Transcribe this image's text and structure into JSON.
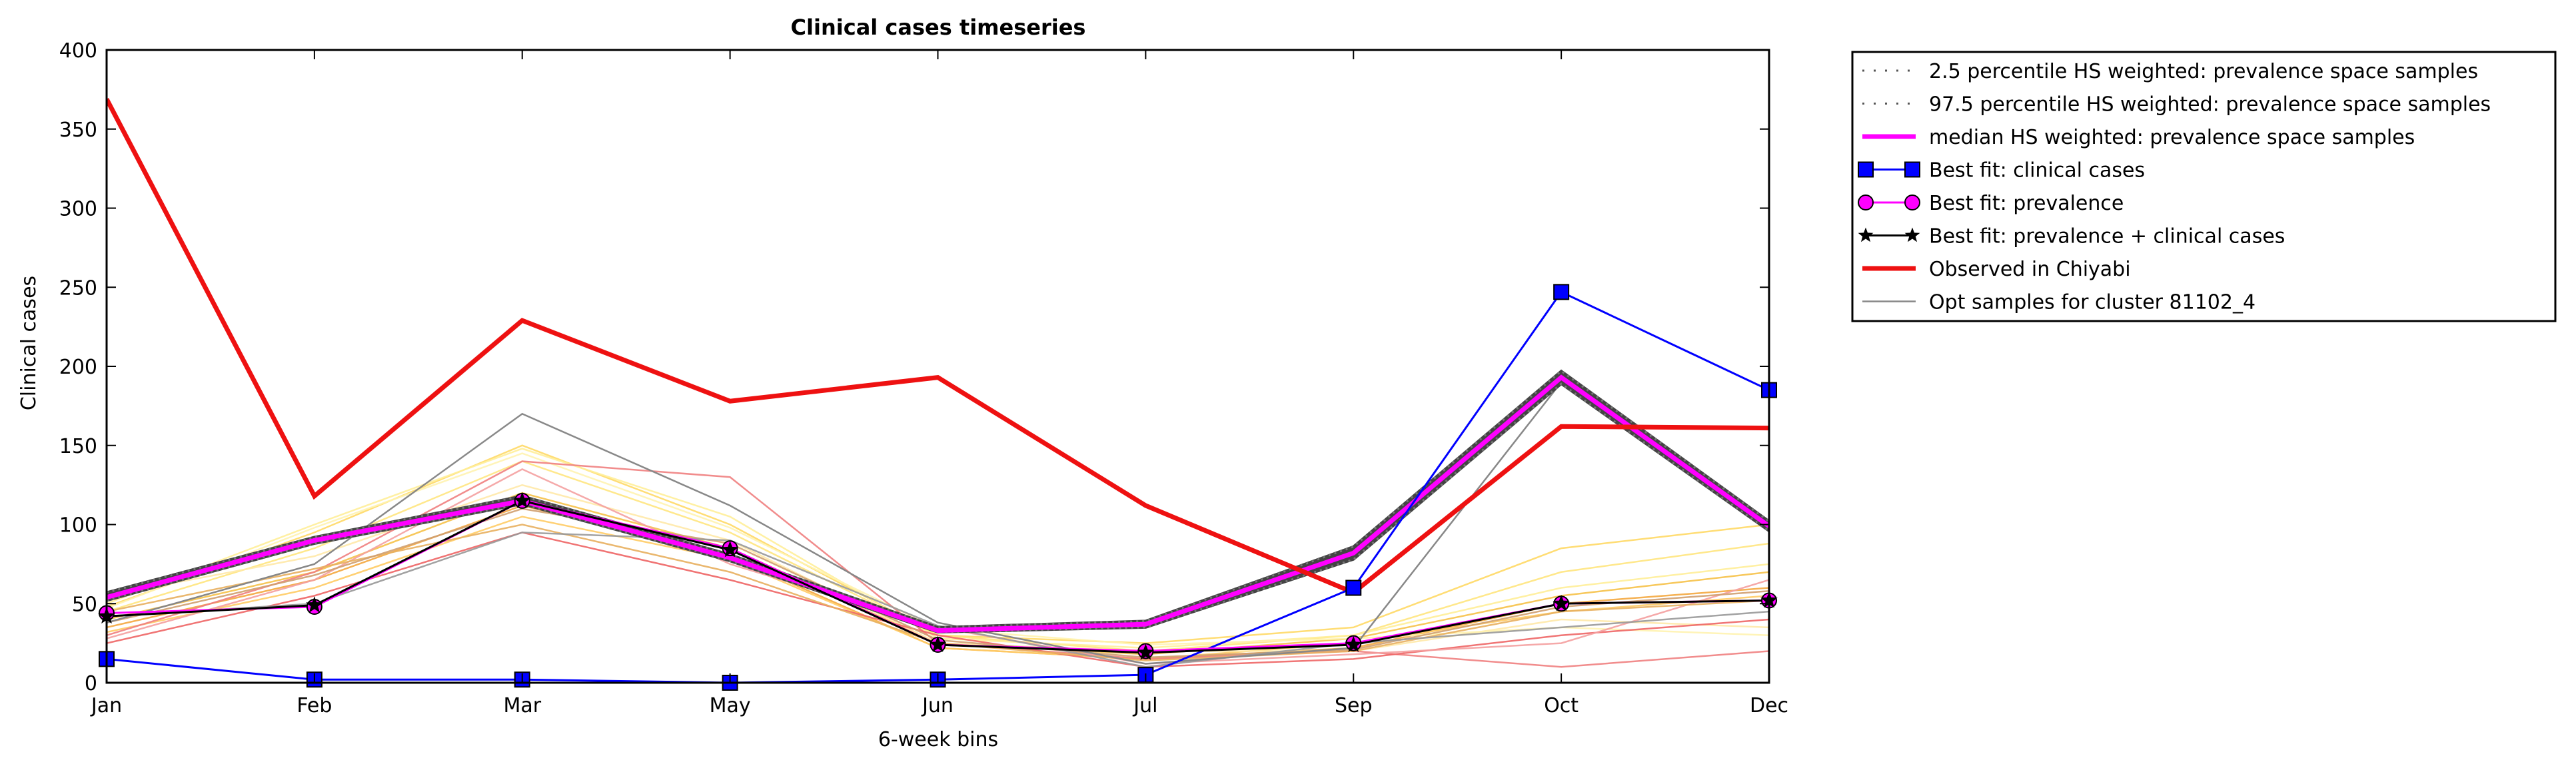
{
  "chart_data": {
    "type": "line",
    "title": "Clinical cases timeseries",
    "xlabel": "6-week bins",
    "ylabel": "Clinical cases",
    "categories": [
      "Jan",
      "Feb",
      "Mar",
      "May",
      "Jun",
      "Jul",
      "Sep",
      "Oct",
      "Dec"
    ],
    "ylim": [
      0,
      400
    ],
    "yticks": [
      0,
      50,
      100,
      150,
      200,
      250,
      300,
      350,
      400
    ],
    "legend_position": "outside-right-top",
    "grid": false,
    "series": [
      {
        "name": "2.5 percentile HS weighted: prevalence space samples",
        "color": "#555555",
        "style": "dotted",
        "values": [
          52,
          88,
          113,
          77,
          32,
          35,
          78,
          189,
          96
        ]
      },
      {
        "name": "97.5 percentile HS weighted: prevalence space samples",
        "color": "#555555",
        "style": "dotted",
        "values": [
          57,
          92,
          118,
          81,
          35,
          39,
          86,
          197,
          102
        ]
      },
      {
        "name": "median HS weighted: prevalence space samples",
        "color": "#ff00ff",
        "style": "solid",
        "values": [
          54,
          90,
          115,
          79,
          33,
          37,
          82,
          193,
          99
        ]
      },
      {
        "name": "Best fit: clinical cases",
        "color": "#0000ff",
        "style": "square",
        "values": [
          15,
          2,
          2,
          0,
          2,
          5,
          60,
          247,
          185
        ]
      },
      {
        "name": "Best fit: prevalence",
        "color": "#ff00ff",
        "style": "circle",
        "values": [
          44,
          48,
          115,
          85,
          24,
          20,
          25,
          50,
          52
        ]
      },
      {
        "name": "Best fit: prevalence + clinical cases",
        "color": "#000000",
        "style": "star",
        "values": [
          42,
          49,
          115,
          84,
          24,
          19,
          24,
          50,
          52
        ]
      },
      {
        "name": "Observed in Chiyabi",
        "color": "#ee1111",
        "style": "thick",
        "values": [
          369,
          118,
          229,
          178,
          193,
          112,
          57,
          162,
          161
        ]
      },
      {
        "name": "Opt samples for cluster 81102_4",
        "color": "#888888",
        "style": "thin",
        "values": [
          38,
          75,
          170,
          112,
          38,
          12,
          22,
          190,
          98
        ]
      }
    ],
    "sample_series": [
      {
        "color": "#ffd966",
        "values": [
          48,
          95,
          150,
          100,
          30,
          25,
          35,
          85,
          100
        ]
      },
      {
        "color": "#ffe680",
        "values": [
          45,
          85,
          140,
          95,
          30,
          20,
          30,
          70,
          88
        ]
      },
      {
        "color": "#ffee99",
        "values": [
          50,
          100,
          148,
          105,
          28,
          22,
          30,
          60,
          75
        ]
      },
      {
        "color": "#f6c24a",
        "values": [
          40,
          70,
          120,
          85,
          25,
          18,
          28,
          55,
          70
        ]
      },
      {
        "color": "#f4a940",
        "values": [
          35,
          65,
          112,
          80,
          22,
          15,
          22,
          50,
          60
        ]
      },
      {
        "color": "#ffcc66",
        "values": [
          32,
          60,
          105,
          78,
          22,
          15,
          25,
          45,
          55
        ]
      },
      {
        "color": "#ffe9a8",
        "values": [
          55,
          80,
          125,
          90,
          25,
          20,
          20,
          40,
          35
        ]
      },
      {
        "color": "#fff3b0",
        "values": [
          47,
          98,
          145,
          98,
          34,
          24,
          28,
          35,
          30
        ]
      },
      {
        "color": "#f08080",
        "values": [
          30,
          70,
          140,
          130,
          25,
          15,
          20,
          10,
          20
        ]
      },
      {
        "color": "#ee6666",
        "values": [
          25,
          55,
          95,
          65,
          30,
          10,
          15,
          30,
          40
        ]
      },
      {
        "color": "#f4a0a0",
        "values": [
          28,
          65,
          135,
          75,
          35,
          12,
          18,
          25,
          65
        ]
      },
      {
        "color": "#e8b060",
        "values": [
          45,
          72,
          100,
          70,
          25,
          14,
          20,
          45,
          52
        ]
      },
      {
        "color": "#d0a070",
        "values": [
          38,
          68,
          110,
          88,
          27,
          16,
          21,
          48,
          58
        ]
      },
      {
        "color": "#999999",
        "values": [
          42,
          50,
          95,
          90,
          36,
          10,
          25,
          35,
          45
        ]
      }
    ]
  }
}
